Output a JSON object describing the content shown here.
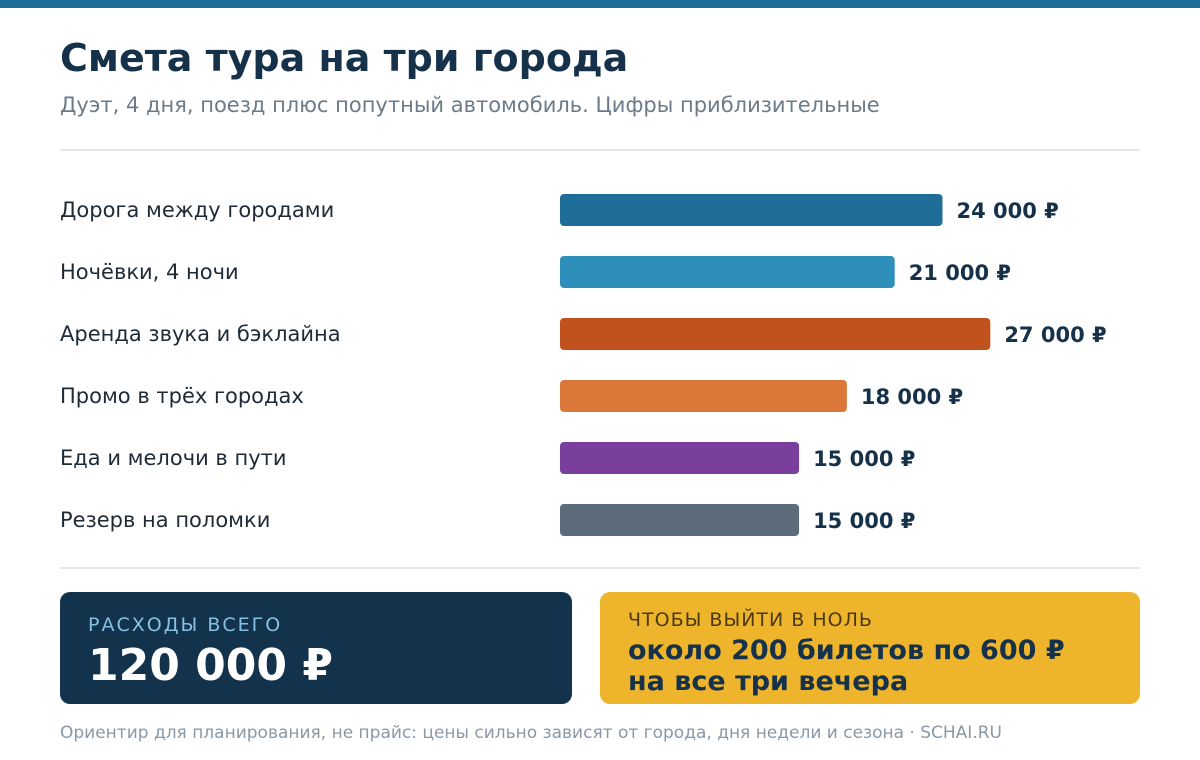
{
  "header": {
    "title": "Смета тура на три города",
    "subtitle": "Дуэт, 4 дня, поезд плюс попутный автомобиль. Цифры приблизительные"
  },
  "chart_data": {
    "type": "bar",
    "orientation": "horizontal",
    "categories": [
      "Дорога между городами",
      "Ночёвки, 4 ночи",
      "Аренда звука и бэклайна",
      "Промо в трёх городах",
      "Еда и мелочи в пути",
      "Резерв на поломки"
    ],
    "values": [
      24000,
      21000,
      27000,
      18000,
      15000,
      15000
    ],
    "value_labels": [
      "24 000 ₽",
      "21 000 ₽",
      "27 000 ₽",
      "18 000 ₽",
      "15 000 ₽",
      "15 000 ₽"
    ],
    "colors": [
      "#1f6e99",
      "#2e8fba",
      "#c1521e",
      "#dc773a",
      "#7a3f9d",
      "#5b6b79"
    ],
    "xlim": [
      0,
      32000
    ],
    "grid": false,
    "legend": "none"
  },
  "summary": {
    "total_label": "РАСХОДЫ ВСЕГО",
    "total_value": "120 000 ₽",
    "breakeven_label": "ЧТОБЫ ВЫЙТИ В НОЛЬ",
    "breakeven_line1": "около 200 билетов по 600 ₽",
    "breakeven_line2": "на все три вечера"
  },
  "footer": {
    "note": "Ориентир для планирования, не прайс: цены сильно зависят от города, дня недели и сезона · SCHAI.RU"
  },
  "colors": {
    "accent": "#1f6e99",
    "dark_card": "#13324b",
    "gold_card": "#eeb42b"
  }
}
